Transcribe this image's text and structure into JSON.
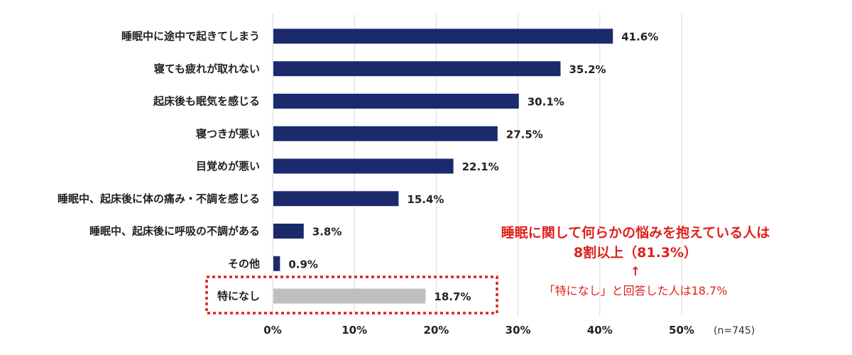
{
  "chart_data": {
    "type": "bar",
    "orientation": "horizontal",
    "categories": [
      "睡眠中に途中で起きてしまう",
      "寝ても疲れが取れない",
      "起床後も眠気を感じる",
      "寝つきが悪い",
      "目覚めが悪い",
      "睡眠中、起床後に体の痛み・不調を感じる",
      "睡眠中、起床後に呼吸の不調がある",
      "その他",
      "特になし"
    ],
    "values": [
      41.6,
      35.2,
      30.1,
      27.5,
      22.1,
      15.4,
      3.8,
      0.9,
      18.7
    ],
    "value_labels": [
      "41.6%",
      "35.2%",
      "30.1%",
      "27.5%",
      "22.1%",
      "15.4%",
      "3.8%",
      "0.9%",
      "18.7%"
    ],
    "bar_colors": [
      "#1a2a6c",
      "#1a2a6c",
      "#1a2a6c",
      "#1a2a6c",
      "#1a2a6c",
      "#1a2a6c",
      "#1a2a6c",
      "#1a2a6c",
      "#bfbfbf"
    ],
    "xlim": [
      0,
      50
    ],
    "xticks": [
      0,
      10,
      20,
      30,
      40,
      50
    ],
    "xtick_labels": [
      "0%",
      "10%",
      "20%",
      "30%",
      "40%",
      "50%"
    ],
    "grid": true,
    "sample_note": "(n=745)",
    "highlighted_category": "特になし",
    "highlight_color": "#e0201c",
    "annotation": {
      "line1": "睡眠に関して何らかの悩みを抱えている人は",
      "line2": "8割以上（81.3%）",
      "arrow": "↑",
      "line3": "「特になし」と回答した人は18.7%"
    },
    "title": "",
    "xlabel": "",
    "ylabel": ""
  }
}
